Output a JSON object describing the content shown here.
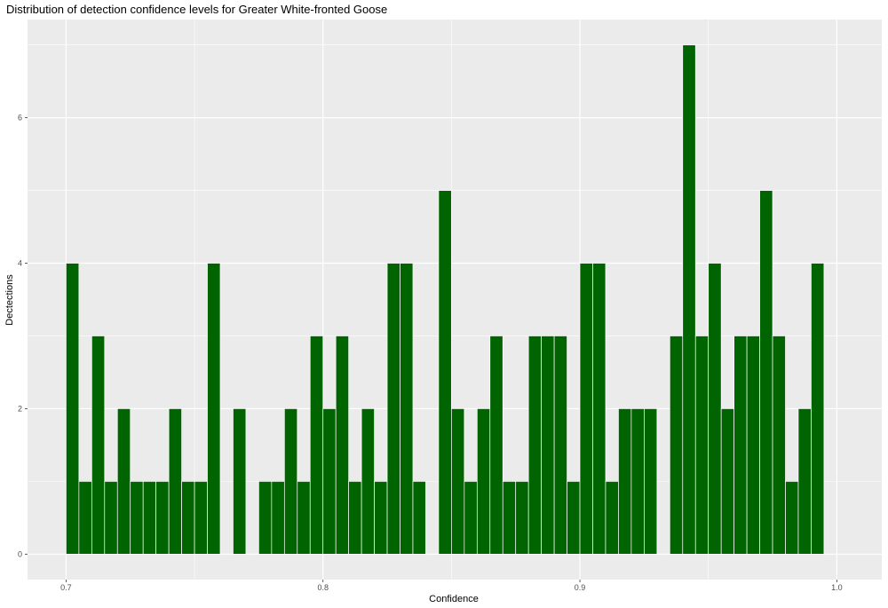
{
  "chart_data": {
    "type": "bar",
    "title": "Distribution of detection confidence levels for Greater White-fronted Goose",
    "xlabel": "Confidence",
    "ylabel": "Dectections",
    "xlim": [
      0.685,
      1.0175
    ],
    "ylim": [
      -0.35,
      7.35
    ],
    "x_ticks": [
      0.7,
      0.8,
      0.9,
      1.0
    ],
    "x_tick_labels": [
      "0.7",
      "0.8",
      "0.9",
      "1.0"
    ],
    "y_ticks": [
      0,
      2,
      4,
      6
    ],
    "y_tick_labels": [
      "0",
      "2",
      "4",
      "6"
    ],
    "bin_width": 0.005,
    "bin_start": 0.7025,
    "values": [
      4,
      1,
      3,
      1,
      2,
      1,
      1,
      1,
      2,
      1,
      1,
      4,
      0,
      2,
      0,
      1,
      1,
      2,
      1,
      3,
      2,
      3,
      1,
      2,
      1,
      4,
      4,
      1,
      0,
      5,
      2,
      1,
      2,
      3,
      1,
      1,
      3,
      3,
      3,
      1,
      4,
      4,
      1,
      2,
      2,
      2,
      0,
      3,
      7,
      3,
      4,
      2,
      3,
      3,
      5,
      3,
      1,
      2,
      4
    ],
    "bar_color": "#006400",
    "panel_color": "#ebebeb",
    "grid": true
  }
}
